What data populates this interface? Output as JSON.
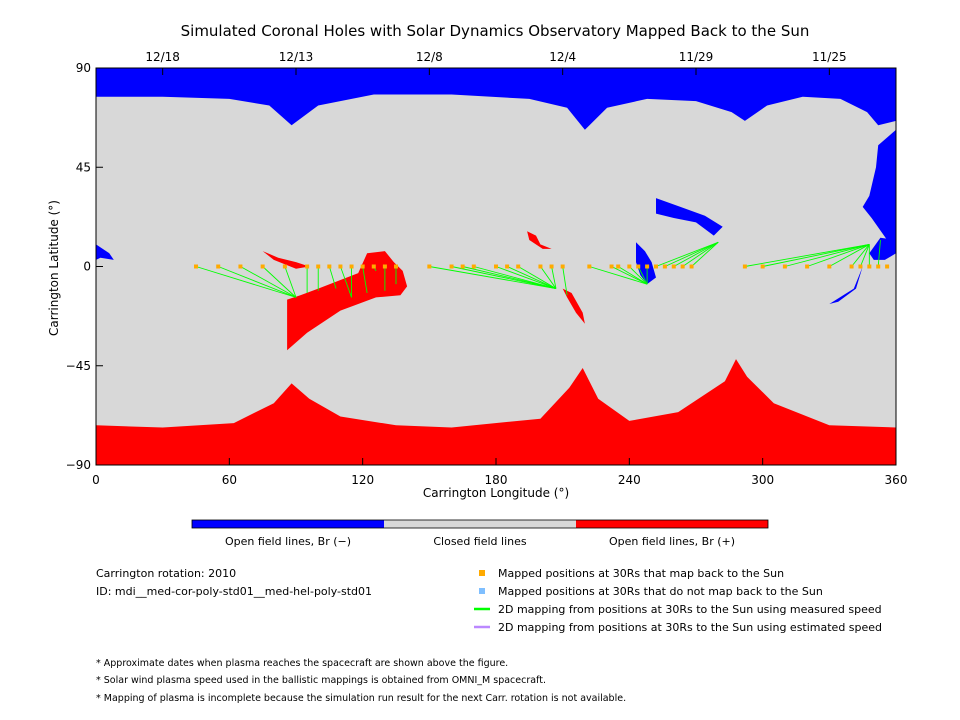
{
  "chart_data": {
    "type": "map",
    "title": "Simulated Coronal Holes with Solar Dynamics Observatory Mapped Back to the Sun",
    "xlabel": "Carrington Longitude (°)",
    "ylabel": "Carrington Latitude (°)",
    "xlim": [
      0,
      360
    ],
    "ylim": [
      -90,
      90
    ],
    "x_ticks": [
      0,
      60,
      120,
      180,
      240,
      300,
      360
    ],
    "y_ticks": [
      90,
      45,
      0,
      -45,
      -90
    ],
    "y_tick_labels": [
      "90",
      "45",
      "0",
      "−45",
      "−90"
    ],
    "top_axis_dates": [
      {
        "label": "12/18",
        "lon": 30
      },
      {
        "label": "12/13",
        "lon": 90
      },
      {
        "label": "12/8",
        "lon": 150
      },
      {
        "label": "12/4",
        "lon": 210
      },
      {
        "label": "11/29",
        "lon": 270
      },
      {
        "label": "11/25",
        "lon": 330
      }
    ],
    "colors": {
      "open_negative": "#0000ff",
      "closed": "#d8d8d8",
      "open_positive": "#ff0000",
      "mapped_back": "#ffaa00",
      "not_mapped": "#7fbfff",
      "measured_speed": "#00ff00",
      "estimated_speed": "#bb88ff"
    },
    "regions": {
      "north_cap_lat": 75,
      "south_cap_lat": -72,
      "south_cusps": [
        {
          "lon": 88,
          "lat": -53
        },
        {
          "lon": 218,
          "lat": -46
        },
        {
          "lon": 287,
          "lat": -42
        }
      ],
      "north_indents": [
        {
          "lon": 88,
          "lat": 64
        },
        {
          "lon": 220,
          "lat": 62
        },
        {
          "lon": 290,
          "lat": 66
        }
      ]
    },
    "mapping": {
      "spacecraft_lat": 0,
      "spacecraft_lons": [
        45,
        55,
        65,
        75,
        85,
        95,
        100,
        105,
        110,
        115,
        120,
        125,
        130,
        135,
        150,
        160,
        165,
        170,
        180,
        185,
        190,
        200,
        205,
        210,
        222,
        232,
        235,
        240,
        244,
        248,
        252,
        256,
        260,
        264,
        268,
        292,
        300,
        310,
        320,
        330,
        340,
        344,
        348,
        352,
        356
      ],
      "sun_footpoints": [
        {
          "lon": 90,
          "lat": -14
        },
        {
          "lon": 92,
          "lat": -13
        },
        {
          "lon": 95,
          "lat": -12
        },
        {
          "lon": 100,
          "lat": -11
        },
        {
          "lon": 108,
          "lat": -10
        },
        {
          "lon": 115,
          "lat": -14
        },
        {
          "lon": 122,
          "lat": -12
        },
        {
          "lon": 130,
          "lat": -11
        },
        {
          "lon": 135,
          "lat": -8
        },
        {
          "lon": 132,
          "lat": -3
        },
        {
          "lon": 126,
          "lat": -2
        },
        {
          "lon": 207,
          "lat": -10
        },
        {
          "lon": 212,
          "lat": -13
        },
        {
          "lon": 248,
          "lat": -8
        },
        {
          "lon": 250,
          "lat": -6
        },
        {
          "lon": 280,
          "lat": 11
        },
        {
          "lon": 348,
          "lat": 10
        },
        {
          "lon": 351,
          "lat": 11
        },
        {
          "lon": 353,
          "lat": 12
        },
        {
          "lon": 355,
          "lat": 10
        },
        {
          "lon": 350,
          "lat": 6
        }
      ]
    },
    "colorbar": {
      "labels": [
        "Open field lines, Br (−)",
        "Closed field lines",
        "Open field lines, Br (+)"
      ]
    }
  },
  "info": {
    "rotation": "Carrington rotation: 2010",
    "id": "ID: mdi__med-cor-poly-std01__med-hel-poly-std01"
  },
  "legend": [
    {
      "type": "square",
      "color": "#ffaa00",
      "label": "Mapped positions at 30Rs that map back to the Sun"
    },
    {
      "type": "square",
      "color": "#7fbfff",
      "label": "Mapped positions at 30Rs that do not map back to the Sun"
    },
    {
      "type": "line",
      "color": "#00ff00",
      "label": "2D mapping from positions at 30Rs to the Sun using measured speed"
    },
    {
      "type": "line",
      "color": "#bb88ff",
      "label": "2D mapping from positions at 30Rs to the Sun using estimated speed"
    }
  ],
  "notes": [
    "* Approximate dates when plasma reaches the spacecraft are shown above the figure.",
    "* Solar wind plasma speed used in the ballistic mappings is obtained from OMNI_M spacecraft.",
    "* Mapping of plasma is incomplete because the simulation run result for the next Carr. rotation is not available."
  ]
}
